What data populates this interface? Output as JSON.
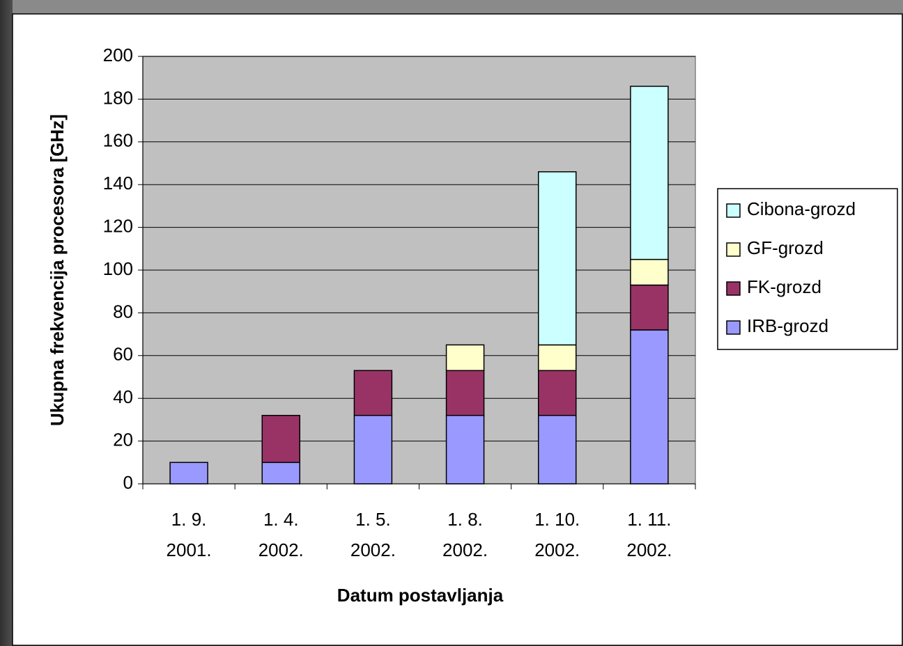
{
  "chart_data": {
    "type": "stacked_bar",
    "x_label": "Datum postavljanja",
    "y_label": "Ukupna frekvencija procesora [GHz]",
    "categories": [
      [
        "1. 9.",
        "2001."
      ],
      [
        "1. 4.",
        "2002."
      ],
      [
        "1. 5.",
        "2002."
      ],
      [
        "1. 8.",
        "2002."
      ],
      [
        "1. 10.",
        "2002."
      ],
      [
        "1. 11.",
        "2002."
      ]
    ],
    "series": [
      {
        "name": "IRB-grozd",
        "color": "#9999ff",
        "values": [
          10,
          10,
          32,
          32,
          32,
          72
        ]
      },
      {
        "name": "FK-grozd",
        "color": "#993366",
        "values": [
          0,
          22,
          21,
          21,
          21,
          21
        ]
      },
      {
        "name": "GF-grozd",
        "color": "#ffffcc",
        "values": [
          0,
          0,
          0,
          12,
          12,
          12
        ]
      },
      {
        "name": "Cibona-grozd",
        "color": "#ccffff",
        "values": [
          0,
          0,
          0,
          0,
          81,
          81
        ]
      }
    ],
    "ylim": [
      0,
      200
    ],
    "yticks": [
      0,
      20,
      40,
      60,
      80,
      100,
      120,
      140,
      160,
      180,
      200
    ],
    "grid": true,
    "legend": "right",
    "plot_background": "#c0c0c0"
  }
}
